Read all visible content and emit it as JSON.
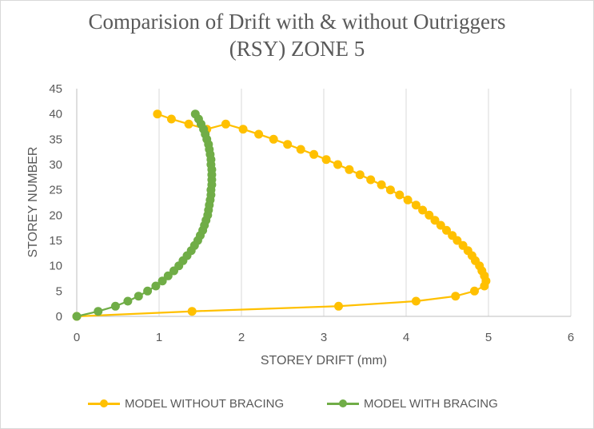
{
  "chart_data": {
    "type": "scatter",
    "title_line1": "Comparision  of Drift with & without Outriggers",
    "title_line2": "(RSY) ZONE 5",
    "xlabel": "STOREY DRIFT (mm)",
    "ylabel": "STOREY NUMBER",
    "xlim": [
      0,
      6
    ],
    "ylim": [
      0,
      45
    ],
    "x_ticks": [
      "0",
      "1",
      "2",
      "3",
      "4",
      "5",
      "6"
    ],
    "y_ticks": [
      "0",
      "5",
      "10",
      "15",
      "20",
      "25",
      "30",
      "35",
      "40",
      "45"
    ],
    "grid": "vertical",
    "legend_position": "bottom",
    "series": [
      {
        "name": "MODEL WITHOUT BRACING",
        "color": "#FFC000",
        "points": [
          [
            0,
            0
          ],
          [
            1.4,
            1
          ],
          [
            3.18,
            2
          ],
          [
            4.12,
            3
          ],
          [
            4.6,
            4
          ],
          [
            4.83,
            5
          ],
          [
            4.95,
            6
          ],
          [
            4.97,
            7
          ],
          [
            4.95,
            8
          ],
          [
            4.92,
            9
          ],
          [
            4.89,
            10
          ],
          [
            4.84,
            11
          ],
          [
            4.8,
            12
          ],
          [
            4.75,
            13
          ],
          [
            4.69,
            14
          ],
          [
            4.62,
            15
          ],
          [
            4.56,
            16
          ],
          [
            4.49,
            17
          ],
          [
            4.42,
            18
          ],
          [
            4.35,
            19
          ],
          [
            4.28,
            20
          ],
          [
            4.2,
            21
          ],
          [
            4.12,
            22
          ],
          [
            4.02,
            23
          ],
          [
            3.92,
            24
          ],
          [
            3.81,
            25
          ],
          [
            3.7,
            26
          ],
          [
            3.57,
            27
          ],
          [
            3.44,
            28
          ],
          [
            3.31,
            29
          ],
          [
            3.17,
            30
          ],
          [
            3.03,
            31
          ],
          [
            2.88,
            32
          ],
          [
            2.72,
            33
          ],
          [
            2.56,
            34
          ],
          [
            2.39,
            35
          ],
          [
            2.21,
            36
          ],
          [
            2.02,
            37
          ],
          [
            1.81,
            38
          ],
          [
            1.58,
            37
          ],
          [
            1.36,
            38
          ],
          [
            1.15,
            39
          ],
          [
            0.98,
            40
          ]
        ]
      },
      {
        "name": "MODEL WITH BRACING",
        "color": "#70AD47",
        "points": [
          [
            0,
            0
          ],
          [
            0.26,
            1
          ],
          [
            0.47,
            2
          ],
          [
            0.62,
            3
          ],
          [
            0.75,
            4
          ],
          [
            0.86,
            5
          ],
          [
            0.96,
            6
          ],
          [
            1.04,
            7
          ],
          [
            1.11,
            8
          ],
          [
            1.18,
            9
          ],
          [
            1.24,
            10
          ],
          [
            1.29,
            11
          ],
          [
            1.34,
            12
          ],
          [
            1.39,
            13
          ],
          [
            1.43,
            14
          ],
          [
            1.47,
            15
          ],
          [
            1.5,
            16
          ],
          [
            1.53,
            17
          ],
          [
            1.55,
            18
          ],
          [
            1.57,
            19
          ],
          [
            1.59,
            20
          ],
          [
            1.6,
            21
          ],
          [
            1.61,
            22
          ],
          [
            1.62,
            23
          ],
          [
            1.63,
            24
          ],
          [
            1.63,
            25
          ],
          [
            1.64,
            26
          ],
          [
            1.64,
            27
          ],
          [
            1.64,
            28
          ],
          [
            1.64,
            29
          ],
          [
            1.63,
            30
          ],
          [
            1.63,
            31
          ],
          [
            1.62,
            32
          ],
          [
            1.61,
            33
          ],
          [
            1.6,
            34
          ],
          [
            1.58,
            35
          ],
          [
            1.56,
            36
          ],
          [
            1.54,
            37
          ],
          [
            1.51,
            38
          ],
          [
            1.48,
            39
          ],
          [
            1.44,
            40
          ]
        ]
      }
    ]
  }
}
